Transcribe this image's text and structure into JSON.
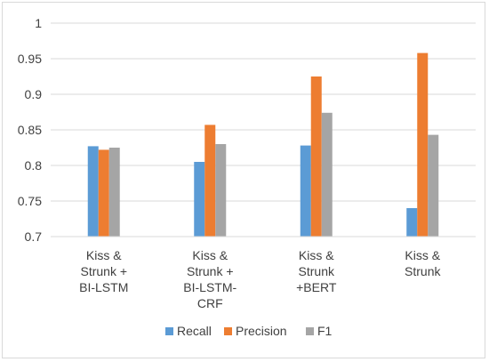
{
  "chart_data": {
    "type": "bar",
    "categories": [
      [
        "Kiss &",
        "Strunk  +",
        "BI-LSTM"
      ],
      [
        "Kiss &",
        "Strunk  +",
        "BI-LSTM-",
        "CRF"
      ],
      [
        "Kiss &",
        "Strunk",
        "+BERT"
      ],
      [
        "Kiss &",
        "Strunk"
      ]
    ],
    "series": [
      {
        "name": "Recall",
        "color": "#5b9bd5",
        "values": [
          0.827,
          0.805,
          0.828,
          0.74
        ]
      },
      {
        "name": "Precision",
        "color": "#ed7d31",
        "values": [
          0.822,
          0.857,
          0.925,
          0.958
        ]
      },
      {
        "name": "F1",
        "color": "#a5a5a5",
        "values": [
          0.825,
          0.83,
          0.874,
          0.843
        ]
      }
    ],
    "ylim": [
      0.7,
      1.0
    ],
    "yticks": [
      "0.7",
      "0.75",
      "0.8",
      "0.85",
      "0.9",
      "0.95",
      "1"
    ],
    "grid": true,
    "legend_position": "bottom",
    "title": "",
    "xlabel": "",
    "ylabel": ""
  }
}
